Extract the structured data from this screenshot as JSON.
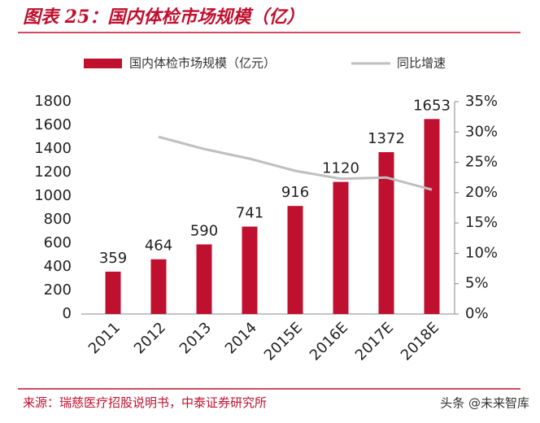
{
  "chart_data": {
    "type": "bar-line",
    "title": "图表 25：国内体检市场规模（亿）",
    "source": "来源：瑞慈医疗招股说明书，中泰证券研究所",
    "watermark": "头条 @未来智库",
    "categories": [
      "2011",
      "2012",
      "2013",
      "2014",
      "2015E",
      "2016E",
      "2017E",
      "2018E"
    ],
    "series": [
      {
        "name": "国内体检市场规模（亿元）",
        "type": "bar",
        "color": "#c0102f",
        "values": [
          359,
          464,
          590,
          741,
          916,
          1120,
          1372,
          1653
        ]
      },
      {
        "name": "同比增速",
        "type": "line",
        "color": "#bfbfbf",
        "axis": "y2",
        "values": [
          null,
          29.2,
          27.2,
          25.6,
          23.6,
          22.3,
          22.5,
          20.5
        ]
      }
    ],
    "ylim": [
      0,
      1800
    ],
    "yticks": [
      0,
      200,
      400,
      600,
      800,
      1000,
      1200,
      1400,
      1600,
      1800
    ],
    "y2lim": [
      0,
      35
    ],
    "y2ticks": [
      {
        "value": 0,
        "label": "0%"
      },
      {
        "value": 5,
        "label": "5%"
      },
      {
        "value": 10,
        "label": "10%"
      },
      {
        "value": 15,
        "label": "15%"
      },
      {
        "value": 20,
        "label": "20%"
      },
      {
        "value": 25,
        "label": "25%"
      },
      {
        "value": 30,
        "label": "30%"
      },
      {
        "value": 35,
        "label": "35%"
      }
    ],
    "legend": "top",
    "grid": false
  }
}
